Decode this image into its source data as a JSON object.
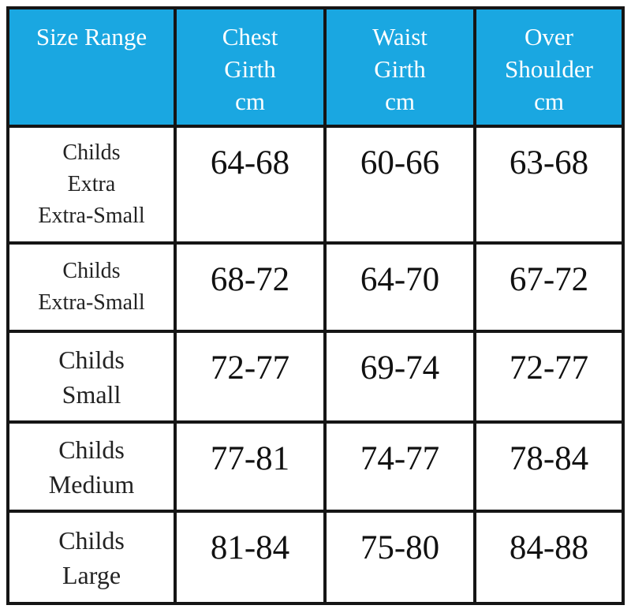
{
  "table": {
    "header": [
      [
        "Size Range"
      ],
      [
        "Chest",
        "Girth",
        "cm"
      ],
      [
        "Waist",
        "Girth",
        "cm"
      ],
      [
        "Over",
        "Shoulder",
        "cm"
      ]
    ],
    "rows": [
      [
        [
          "Childs",
          "Extra",
          "Extra-Small"
        ],
        "64-68",
        "60-66",
        "63-68"
      ],
      [
        [
          "Childs",
          "Extra-Small"
        ],
        "68-72",
        "64-70",
        "67-72"
      ],
      [
        [
          "Childs",
          "Small"
        ],
        "72-77",
        "69-74",
        "72-77"
      ],
      [
        [
          "Childs",
          "Medium"
        ],
        "77-81",
        "74-77",
        "78-84"
      ],
      [
        [
          "Childs",
          "Large"
        ],
        "81-84",
        "75-80",
        "84-88"
      ]
    ]
  }
}
